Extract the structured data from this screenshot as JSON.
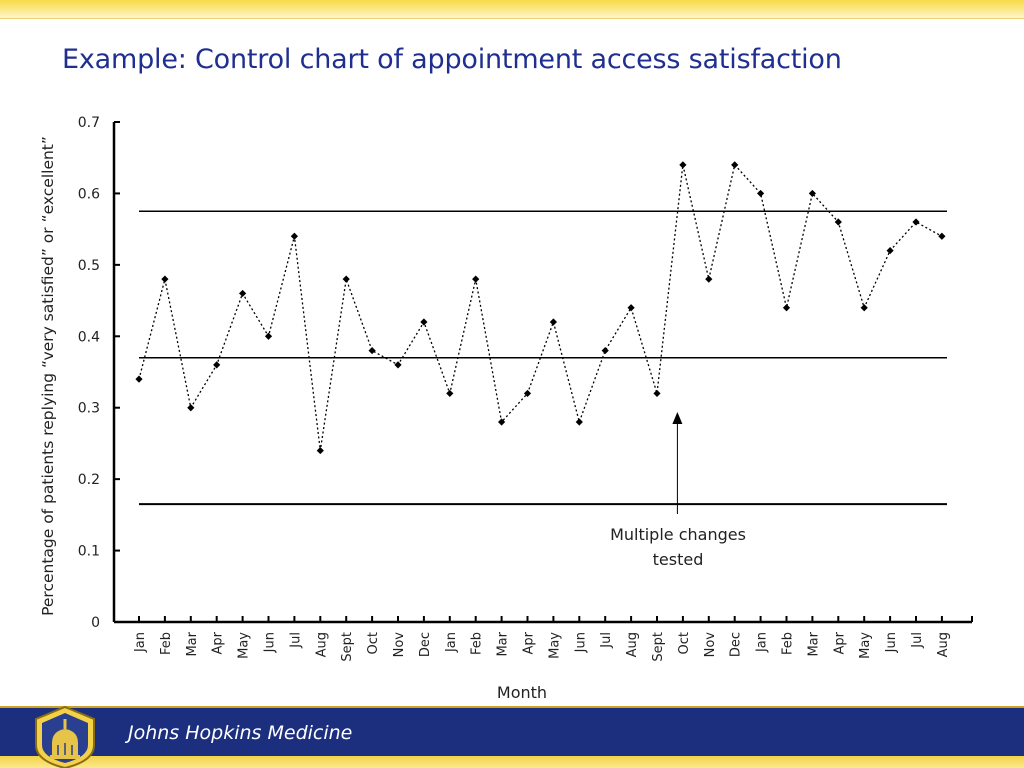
{
  "slide": {
    "title": "Example: Control chart of appointment access satisfaction",
    "footer_text": "Johns Hopkins Medicine"
  },
  "chart_data": {
    "type": "line",
    "title": "",
    "xlabel": "Month",
    "ylabel": "Percentage of patients replying “very satisfied” or “excellent”",
    "ylim": [
      0,
      0.7
    ],
    "yticks": [
      "0",
      "0.1",
      "0.2",
      "0.3",
      "0.4",
      "0.5",
      "0.6",
      "0.7"
    ],
    "categories": [
      "Jan",
      "Feb",
      "Mar",
      "Apr",
      "May",
      "Jun",
      "Jul",
      "Aug",
      "Sept",
      "Oct",
      "Nov",
      "Dec",
      "Jan",
      "Feb",
      "Mar",
      "Apr",
      "May",
      "Jun",
      "Jul",
      "Aug",
      "Sept",
      "Oct",
      "Nov",
      "Dec",
      "Jan",
      "Feb",
      "Mar",
      "Apr",
      "May",
      "Jun",
      "Jul",
      "Aug"
    ],
    "series": [
      {
        "values": [
          0.34,
          0.48,
          0.3,
          0.36,
          0.46,
          0.4,
          0.54,
          0.24,
          0.48,
          0.38,
          0.36,
          0.42,
          0.32,
          0.48,
          0.28,
          0.32,
          0.42,
          0.28,
          0.38,
          0.44,
          0.32,
          0.64,
          0.48,
          0.64,
          0.6,
          0.44,
          0.6,
          0.56,
          0.44,
          0.52,
          0.56,
          0.54
        ],
        "line_style": "dotted",
        "marker": "diamond",
        "color": "#000000"
      }
    ],
    "reference_lines": [
      {
        "kind": "upper_control_limit",
        "y": 0.575
      },
      {
        "kind": "center_line",
        "y": 0.37
      },
      {
        "kind": "lower_control_limit",
        "y": 0.165
      }
    ],
    "annotation": {
      "text_lines": [
        "Multiple changes",
        "tested"
      ],
      "points_to_category_index": 21
    },
    "grid": false,
    "legend": "none"
  },
  "colors": {
    "title": "#1f2f8f",
    "footer_bg": "#1c2f7e",
    "accent_yellow": "#f3d24a"
  }
}
